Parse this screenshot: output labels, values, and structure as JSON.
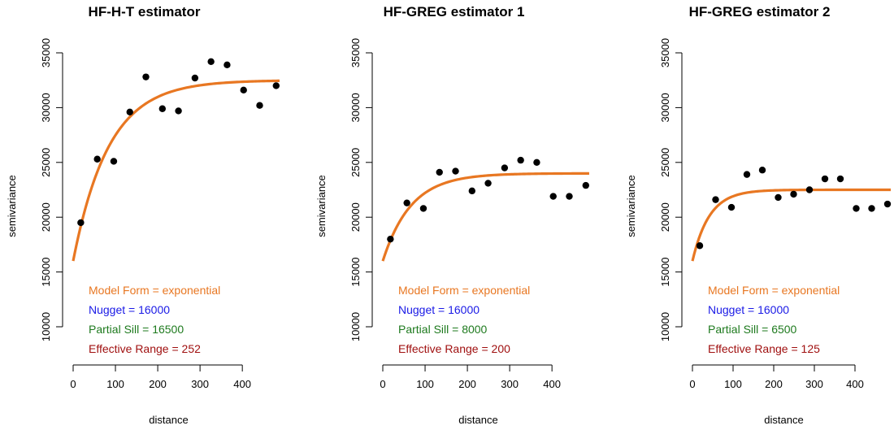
{
  "chart_data": [
    {
      "type": "scatter",
      "title": "HF-H-T estimator",
      "xlabel": "distance",
      "ylabel": "semivariance",
      "xticks": [
        "0",
        "100",
        "200",
        "300",
        "400"
      ],
      "yticks": [
        "10000",
        "15000",
        "20000",
        "25000",
        "30000",
        "35000"
      ],
      "xlim": [
        0,
        490
      ],
      "ylim": [
        10000,
        35000
      ],
      "grid": false,
      "points": {
        "x": [
          18,
          57,
          96,
          134,
          172,
          211,
          249,
          288,
          326,
          364,
          403,
          441,
          480
        ],
        "y": [
          19500,
          25300,
          25100,
          29600,
          32800,
          29900,
          29700,
          32700,
          34200,
          33900,
          31600,
          30200,
          32000
        ]
      },
      "fit": {
        "model": "exponential",
        "nugget": 16000,
        "partial_sill": 16500,
        "effective_range": 252
      },
      "annotations": [
        {
          "text": "Model Form = exponential",
          "color": "#e87722"
        },
        {
          "text": "Nugget = 16000",
          "color": "#1a1ae6"
        },
        {
          "text": "Partial Sill = 16500",
          "color": "#1e7a1e"
        },
        {
          "text": "Effective Range = 252",
          "color": "#a01010"
        }
      ]
    },
    {
      "type": "scatter",
      "title": "HF-GREG estimator 1",
      "xlabel": "distance",
      "ylabel": "semivariance",
      "xticks": [
        "0",
        "100",
        "200",
        "300",
        "400"
      ],
      "yticks": [
        "10000",
        "15000",
        "20000",
        "25000",
        "30000",
        "35000"
      ],
      "xlim": [
        0,
        490
      ],
      "ylim": [
        10000,
        35000
      ],
      "grid": false,
      "points": {
        "x": [
          18,
          57,
          96,
          134,
          172,
          211,
          249,
          288,
          326,
          364,
          403,
          441,
          480
        ],
        "y": [
          18000,
          21300,
          20800,
          24100,
          24200,
          22400,
          23100,
          24500,
          25200,
          25000,
          21900,
          21900,
          22900
        ]
      },
      "fit": {
        "model": "exponential",
        "nugget": 16000,
        "partial_sill": 8000,
        "effective_range": 200
      },
      "annotations": [
        {
          "text": "Model Form = exponential",
          "color": "#e87722"
        },
        {
          "text": "Nugget = 16000",
          "color": "#1a1ae6"
        },
        {
          "text": "Partial Sill = 8000",
          "color": "#1e7a1e"
        },
        {
          "text": "Effective Range = 200",
          "color": "#a01010"
        }
      ]
    },
    {
      "type": "scatter",
      "title": "HF-GREG estimator 2",
      "xlabel": "distance",
      "ylabel": "semivariance",
      "xticks": [
        "0",
        "100",
        "200",
        "300",
        "400"
      ],
      "yticks": [
        "10000",
        "15000",
        "20000",
        "25000",
        "30000",
        "35000"
      ],
      "xlim": [
        0,
        490
      ],
      "ylim": [
        10000,
        35000
      ],
      "grid": false,
      "points": {
        "x": [
          18,
          57,
          96,
          134,
          172,
          211,
          249,
          288,
          326,
          364,
          403,
          441,
          480
        ],
        "y": [
          17400,
          21600,
          20900,
          23900,
          24300,
          21800,
          22100,
          22500,
          23500,
          23500,
          20800,
          20800,
          21200
        ]
      },
      "fit": {
        "model": "exponential",
        "nugget": 16000,
        "partial_sill": 6500,
        "effective_range": 125
      },
      "annotations": [
        {
          "text": "Model Form = exponential",
          "color": "#e87722"
        },
        {
          "text": "Nugget = 16000",
          "color": "#1a1ae6"
        },
        {
          "text": "Partial Sill = 6500",
          "color": "#1e7a1e"
        },
        {
          "text": "Effective Range = 125",
          "color": "#a01010"
        }
      ]
    }
  ],
  "colors": {
    "fit_line": "#e87722",
    "points": "#000000"
  }
}
